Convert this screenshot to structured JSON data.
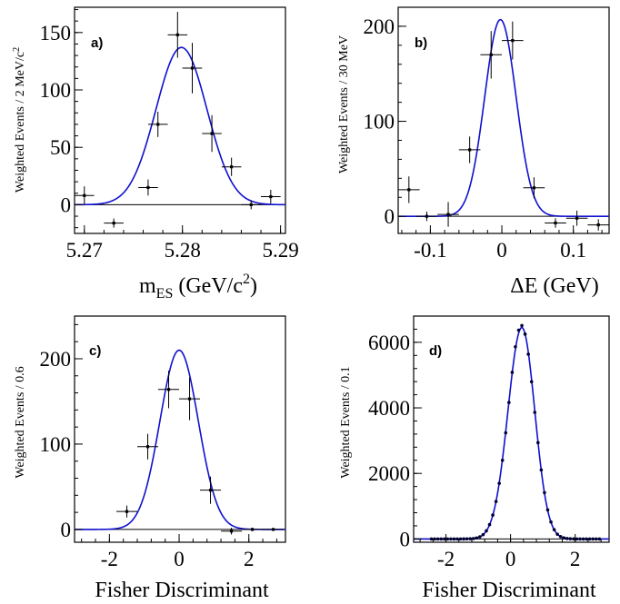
{
  "chart_data": [
    {
      "type": "scatter",
      "panel_label": "a)",
      "xlabel": "m",
      "xlabel_sub": "ES",
      "xlabel_unit_pre": " (GeV/c",
      "xlabel_unit_sup": "2",
      "xlabel_unit_post": ")",
      "ylabel": "Weighted Events / 2 MeV/c",
      "ylabel_sup": "2",
      "xlim": [
        5.269,
        5.2905
      ],
      "ylim": [
        -25,
        172
      ],
      "xticks": [
        5.27,
        5.28,
        5.29
      ],
      "xtick_labels": [
        "5.27",
        "5.28",
        "5.29"
      ],
      "yticks": [
        0,
        50,
        100,
        150
      ],
      "ytick_labels": [
        "0",
        "50",
        "100",
        "150"
      ],
      "points": [
        {
          "x": 5.27,
          "y": 8,
          "ex": 0.001,
          "ey": 8
        },
        {
          "x": 5.273,
          "y": -16,
          "ex": 0.001,
          "ey": 4
        },
        {
          "x": 5.2765,
          "y": 15,
          "ex": 0.001,
          "ey": 7
        },
        {
          "x": 5.2775,
          "y": 70,
          "ex": 0.001,
          "ey": 11
        },
        {
          "x": 5.2795,
          "y": 148,
          "ex": 0.001,
          "ey": 20
        },
        {
          "x": 5.281,
          "y": 119,
          "ex": 0.001,
          "ey": 22
        },
        {
          "x": 5.283,
          "y": 62,
          "ex": 0.001,
          "ey": 16
        },
        {
          "x": 5.285,
          "y": 33,
          "ex": 0.001,
          "ey": 8
        },
        {
          "x": 5.287,
          "y": 0,
          "ex": 0.001,
          "ey": 4
        },
        {
          "x": 5.289,
          "y": 7,
          "ex": 0.001,
          "ey": 6
        }
      ],
      "fit": {
        "model": "gaussian",
        "amp": 137,
        "mean": 5.2799,
        "sigma": 0.0026
      }
    },
    {
      "type": "scatter",
      "panel_label": "b)",
      "xlabel": "ΔE (GeV)",
      "ylabel": "Weighted Events / 30 MeV",
      "xlim": [
        -0.145,
        0.15
      ],
      "ylim": [
        -18,
        220
      ],
      "xticks": [
        -0.1,
        0,
        0.1
      ],
      "xtick_labels": [
        "-0.1",
        "0",
        "0.1"
      ],
      "yticks": [
        0,
        100,
        200
      ],
      "ytick_labels": [
        "0",
        "100",
        "200"
      ],
      "points": [
        {
          "x": -0.13,
          "y": 28,
          "ex": 0.015,
          "ey": 14
        },
        {
          "x": -0.105,
          "y": 0,
          "ex": 0.015,
          "ey": 5
        },
        {
          "x": -0.075,
          "y": 2,
          "ex": 0.015,
          "ey": 13
        },
        {
          "x": -0.045,
          "y": 70,
          "ex": 0.015,
          "ey": 14
        },
        {
          "x": -0.015,
          "y": 170,
          "ex": 0.015,
          "ey": 25
        },
        {
          "x": 0.015,
          "y": 185,
          "ex": 0.015,
          "ey": 20
        },
        {
          "x": 0.045,
          "y": 30,
          "ex": 0.015,
          "ey": 11
        },
        {
          "x": 0.075,
          "y": -7,
          "ex": 0.015,
          "ey": 5
        },
        {
          "x": 0.105,
          "y": -2,
          "ex": 0.015,
          "ey": 8
        },
        {
          "x": 0.135,
          "y": -9,
          "ex": 0.015,
          "ey": 6
        }
      ],
      "fit": {
        "model": "gaussian",
        "amp": 207,
        "mean": -0.002,
        "sigma": 0.022
      }
    },
    {
      "type": "scatter",
      "panel_label": "c)",
      "xlabel": "Fisher Discriminant",
      "ylabel": "Weighted Events / 0.6",
      "xlim": [
        -3.0,
        3.05
      ],
      "ylim": [
        -15,
        250
      ],
      "xticks": [
        -2,
        0,
        2
      ],
      "xtick_labels": [
        "-2",
        "0",
        "2"
      ],
      "yticks": [
        0,
        100,
        200
      ],
      "ytick_labels": [
        "0",
        "100",
        "200"
      ],
      "points": [
        {
          "x": -1.5,
          "y": 21,
          "ex": 0.3,
          "ey": 7
        },
        {
          "x": -0.9,
          "y": 97,
          "ex": 0.3,
          "ey": 15
        },
        {
          "x": -0.3,
          "y": 164,
          "ex": 0.3,
          "ey": 22
        },
        {
          "x": 0.3,
          "y": 153,
          "ex": 0.3,
          "ey": 25
        },
        {
          "x": 0.9,
          "y": 46,
          "ex": 0.3,
          "ey": 16
        },
        {
          "x": 1.5,
          "y": -2,
          "ex": 0.3,
          "ey": 4
        },
        {
          "x": 2.1,
          "y": 0,
          "ex": 0.3,
          "ey": 2
        },
        {
          "x": 2.7,
          "y": 0,
          "ex": 0.3,
          "ey": 1
        }
      ],
      "fit": {
        "model": "gaussian",
        "amp": 210,
        "mean": 0.0,
        "sigma": 0.55
      }
    },
    {
      "type": "scatter",
      "panel_label": "d)",
      "xlabel": "Fisher Discriminant",
      "ylabel": "Weighted Events / 0.1",
      "xlim": [
        -3.0,
        3.05
      ],
      "ylim": [
        -100,
        6800
      ],
      "xticks": [
        -2,
        0,
        2
      ],
      "xtick_labels": [
        "-2",
        "0",
        "2"
      ],
      "yticks": [
        0,
        2000,
        4000,
        6000
      ],
      "ytick_labels": [
        "0",
        "2000",
        "4000",
        "6000"
      ],
      "points_from_fit": {
        "x_start": -2.45,
        "x_end": 2.75,
        "step": 0.1
      },
      "fit": {
        "model": "bifurcated-gaussian",
        "amp": 6450,
        "mean": 0.35,
        "sigma_left": 0.43,
        "sigma_right": 0.4
      }
    }
  ]
}
